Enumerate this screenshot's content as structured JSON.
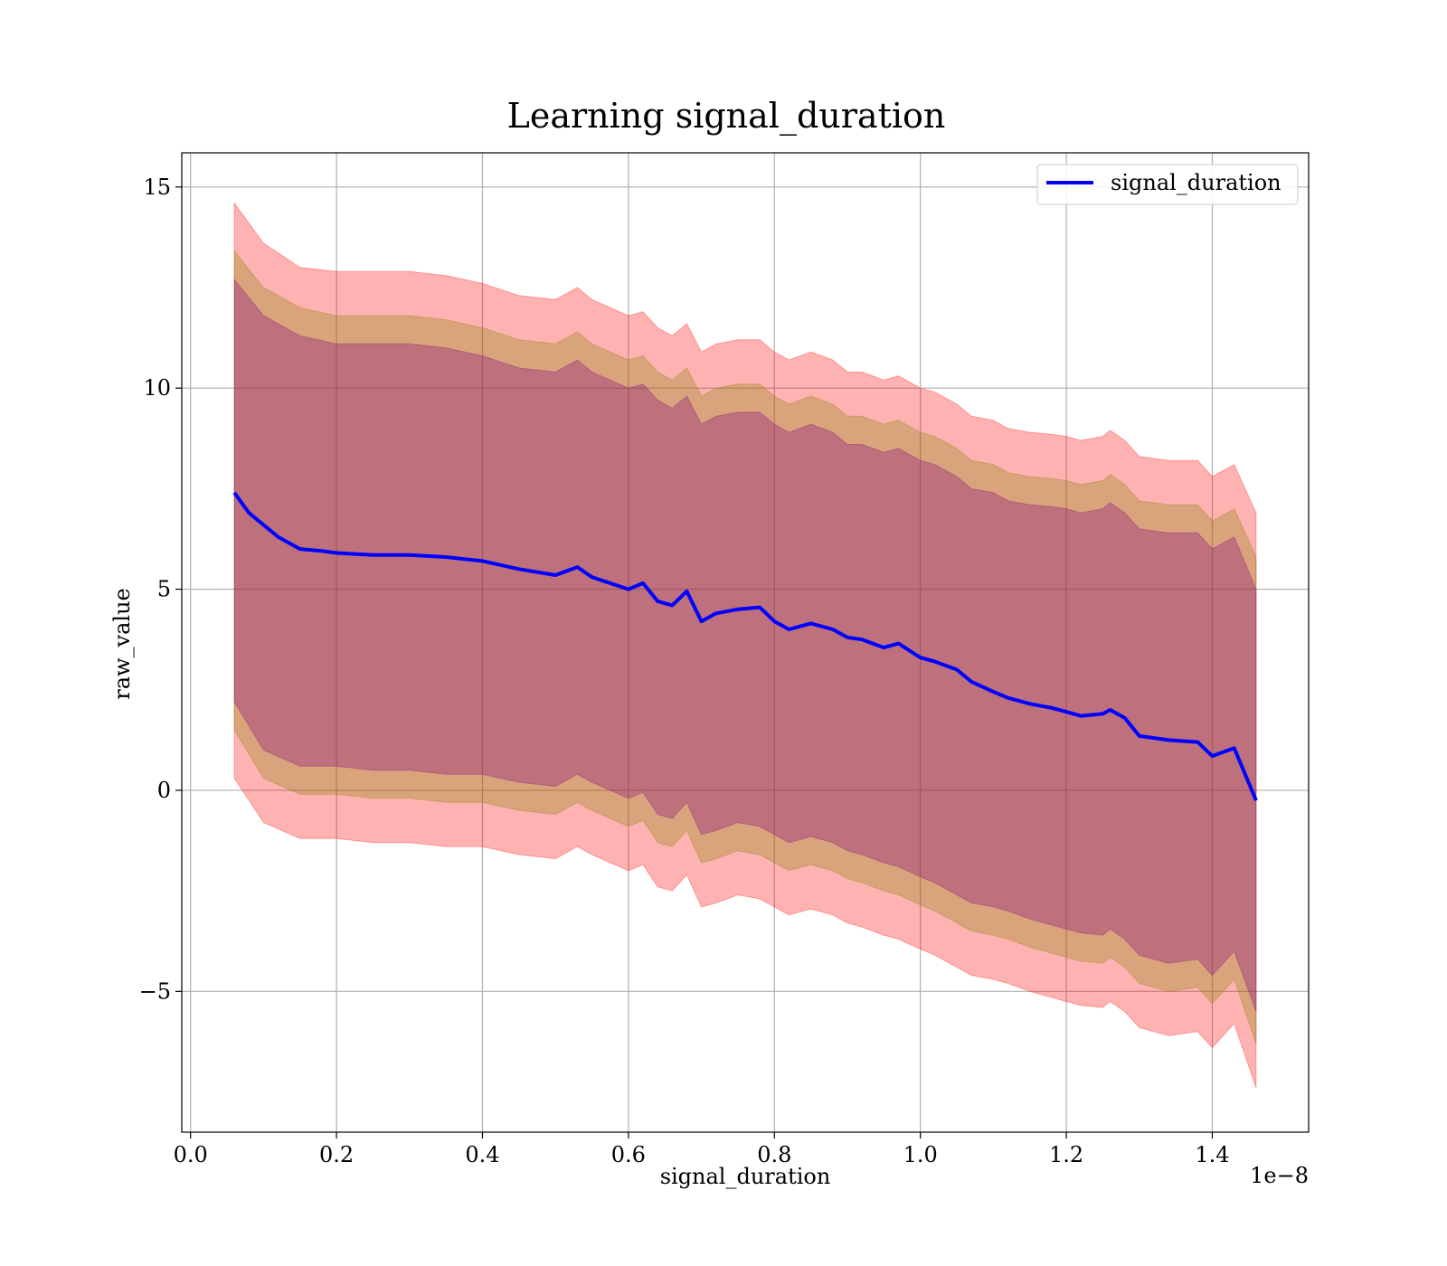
{
  "chart_data": {
    "type": "line",
    "title": "Learning signal_duration",
    "xlabel": "signal_duration",
    "ylabel": "raw_value",
    "x_offset_label": "1e−8",
    "xlim": [
      -0.012,
      1.532
    ],
    "ylim": [
      -8.5,
      15.85
    ],
    "x_ticks": [
      0.0,
      0.2,
      0.4,
      0.6,
      0.8,
      1.0,
      1.2,
      1.4
    ],
    "x_tick_labels": [
      "0.0",
      "0.2",
      "0.4",
      "0.6",
      "0.8",
      "1.0",
      "1.2",
      "1.4"
    ],
    "y_ticks": [
      -5,
      0,
      5,
      10,
      15
    ],
    "y_tick_labels": [
      "−5",
      "0",
      "5",
      "10",
      "15"
    ],
    "grid": true,
    "legend_position": "upper right",
    "series": [
      {
        "name": "signal_duration",
        "color": "#0000ff",
        "x": [
          0.06,
          0.08,
          0.1,
          0.12,
          0.15,
          0.18,
          0.2,
          0.25,
          0.3,
          0.35,
          0.4,
          0.45,
          0.5,
          0.53,
          0.55,
          0.6,
          0.62,
          0.64,
          0.66,
          0.68,
          0.7,
          0.72,
          0.75,
          0.78,
          0.8,
          0.82,
          0.85,
          0.88,
          0.9,
          0.92,
          0.95,
          0.97,
          1.0,
          1.02,
          1.05,
          1.07,
          1.1,
          1.12,
          1.15,
          1.18,
          1.2,
          1.22,
          1.25,
          1.26,
          1.28,
          1.3,
          1.32,
          1.34,
          1.38,
          1.4,
          1.43,
          1.46
        ],
        "values": [
          7.4,
          6.9,
          6.6,
          6.3,
          6.0,
          5.95,
          5.9,
          5.85,
          5.85,
          5.8,
          5.7,
          5.5,
          5.35,
          5.55,
          5.3,
          5.0,
          5.15,
          4.7,
          4.6,
          4.95,
          4.2,
          4.4,
          4.5,
          4.55,
          4.2,
          4.0,
          4.15,
          4.0,
          3.8,
          3.75,
          3.55,
          3.65,
          3.3,
          3.2,
          3.0,
          2.7,
          2.45,
          2.3,
          2.15,
          2.05,
          1.95,
          1.85,
          1.9,
          2.0,
          1.8,
          1.35,
          1.3,
          1.25,
          1.2,
          0.85,
          1.05,
          -0.25
        ]
      }
    ],
    "bands": [
      {
        "color": "#ff0000",
        "opacity": 0.3,
        "x": [
          0.06,
          0.1,
          0.15,
          0.2,
          0.25,
          0.3,
          0.35,
          0.4,
          0.45,
          0.5,
          0.53,
          0.55,
          0.6,
          0.62,
          0.64,
          0.66,
          0.68,
          0.7,
          0.72,
          0.75,
          0.78,
          0.8,
          0.82,
          0.85,
          0.88,
          0.9,
          0.92,
          0.95,
          0.97,
          1.0,
          1.02,
          1.05,
          1.07,
          1.1,
          1.12,
          1.15,
          1.18,
          1.2,
          1.22,
          1.25,
          1.26,
          1.28,
          1.3,
          1.32,
          1.34,
          1.38,
          1.4,
          1.43,
          1.46
        ],
        "upper": [
          14.6,
          13.6,
          13.0,
          12.9,
          12.9,
          12.9,
          12.8,
          12.6,
          12.3,
          12.2,
          12.5,
          12.2,
          11.8,
          11.9,
          11.5,
          11.3,
          11.6,
          10.9,
          11.1,
          11.2,
          11.2,
          10.9,
          10.7,
          10.9,
          10.7,
          10.4,
          10.4,
          10.2,
          10.3,
          10.0,
          9.9,
          9.6,
          9.3,
          9.2,
          9.0,
          8.9,
          8.85,
          8.8,
          8.7,
          8.8,
          8.95,
          8.7,
          8.3,
          8.25,
          8.2,
          8.2,
          7.8,
          8.1,
          6.9
        ],
        "lower": [
          0.3,
          -0.8,
          -1.2,
          -1.2,
          -1.3,
          -1.3,
          -1.4,
          -1.4,
          -1.6,
          -1.7,
          -1.4,
          -1.6,
          -2.0,
          -1.85,
          -2.4,
          -2.5,
          -2.1,
          -2.9,
          -2.8,
          -2.6,
          -2.7,
          -2.9,
          -3.1,
          -2.95,
          -3.1,
          -3.3,
          -3.4,
          -3.6,
          -3.7,
          -3.95,
          -4.1,
          -4.4,
          -4.6,
          -4.7,
          -4.8,
          -5.0,
          -5.15,
          -5.25,
          -5.35,
          -5.4,
          -5.25,
          -5.5,
          -5.9,
          -6.0,
          -6.1,
          -6.0,
          -6.4,
          -5.8,
          -7.4
        ]
      },
      {
        "color": "#808000",
        "opacity": 0.3,
        "x": [
          0.06,
          0.1,
          0.15,
          0.2,
          0.25,
          0.3,
          0.35,
          0.4,
          0.45,
          0.5,
          0.53,
          0.55,
          0.6,
          0.62,
          0.64,
          0.66,
          0.68,
          0.7,
          0.72,
          0.75,
          0.78,
          0.8,
          0.82,
          0.85,
          0.88,
          0.9,
          0.92,
          0.95,
          0.97,
          1.0,
          1.02,
          1.05,
          1.07,
          1.1,
          1.12,
          1.15,
          1.18,
          1.2,
          1.22,
          1.25,
          1.26,
          1.28,
          1.3,
          1.32,
          1.34,
          1.38,
          1.4,
          1.43,
          1.46
        ],
        "upper": [
          13.4,
          12.5,
          12.0,
          11.8,
          11.8,
          11.8,
          11.7,
          11.5,
          11.2,
          11.1,
          11.4,
          11.1,
          10.7,
          10.8,
          10.4,
          10.2,
          10.5,
          9.8,
          10.0,
          10.1,
          10.1,
          9.8,
          9.6,
          9.8,
          9.6,
          9.3,
          9.3,
          9.1,
          9.2,
          8.9,
          8.8,
          8.5,
          8.2,
          8.1,
          7.9,
          7.8,
          7.75,
          7.7,
          7.6,
          7.7,
          7.85,
          7.6,
          7.2,
          7.15,
          7.1,
          7.1,
          6.7,
          7.0,
          5.8
        ],
        "lower": [
          1.5,
          0.3,
          -0.1,
          -0.1,
          -0.2,
          -0.2,
          -0.3,
          -0.3,
          -0.5,
          -0.6,
          -0.3,
          -0.5,
          -0.9,
          -0.75,
          -1.3,
          -1.4,
          -1.0,
          -1.8,
          -1.7,
          -1.5,
          -1.6,
          -1.8,
          -2.0,
          -1.85,
          -2.0,
          -2.2,
          -2.3,
          -2.5,
          -2.6,
          -2.85,
          -3.0,
          -3.3,
          -3.5,
          -3.6,
          -3.7,
          -3.9,
          -4.05,
          -4.15,
          -4.25,
          -4.3,
          -4.15,
          -4.4,
          -4.8,
          -4.9,
          -5.0,
          -4.9,
          -5.3,
          -4.7,
          -6.3
        ]
      },
      {
        "color": "#800080",
        "opacity": 0.3,
        "x": [
          0.06,
          0.1,
          0.15,
          0.2,
          0.25,
          0.3,
          0.35,
          0.4,
          0.45,
          0.5,
          0.53,
          0.55,
          0.6,
          0.62,
          0.64,
          0.66,
          0.68,
          0.7,
          0.72,
          0.75,
          0.78,
          0.8,
          0.82,
          0.85,
          0.88,
          0.9,
          0.92,
          0.95,
          0.97,
          1.0,
          1.02,
          1.05,
          1.07,
          1.1,
          1.12,
          1.15,
          1.18,
          1.2,
          1.22,
          1.25,
          1.26,
          1.28,
          1.3,
          1.32,
          1.34,
          1.38,
          1.4,
          1.43,
          1.46
        ],
        "upper": [
          12.7,
          11.8,
          11.3,
          11.1,
          11.1,
          11.1,
          11.0,
          10.8,
          10.5,
          10.4,
          10.7,
          10.4,
          10.0,
          10.1,
          9.7,
          9.5,
          9.8,
          9.1,
          9.3,
          9.4,
          9.4,
          9.1,
          8.9,
          9.1,
          8.9,
          8.6,
          8.6,
          8.4,
          8.5,
          8.2,
          8.1,
          7.8,
          7.5,
          7.4,
          7.2,
          7.1,
          7.05,
          7.0,
          6.9,
          7.0,
          7.15,
          6.9,
          6.5,
          6.45,
          6.4,
          6.4,
          6.0,
          6.3,
          5.0
        ],
        "lower": [
          2.2,
          1.0,
          0.6,
          0.6,
          0.5,
          0.5,
          0.4,
          0.4,
          0.2,
          0.1,
          0.4,
          0.2,
          -0.2,
          -0.05,
          -0.6,
          -0.7,
          -0.3,
          -1.1,
          -1.0,
          -0.8,
          -0.9,
          -1.1,
          -1.3,
          -1.15,
          -1.3,
          -1.5,
          -1.6,
          -1.8,
          -1.9,
          -2.15,
          -2.3,
          -2.6,
          -2.8,
          -2.9,
          -3.0,
          -3.2,
          -3.35,
          -3.45,
          -3.55,
          -3.6,
          -3.45,
          -3.7,
          -4.1,
          -4.2,
          -4.3,
          -4.2,
          -4.6,
          -4.0,
          -5.5
        ]
      }
    ]
  }
}
